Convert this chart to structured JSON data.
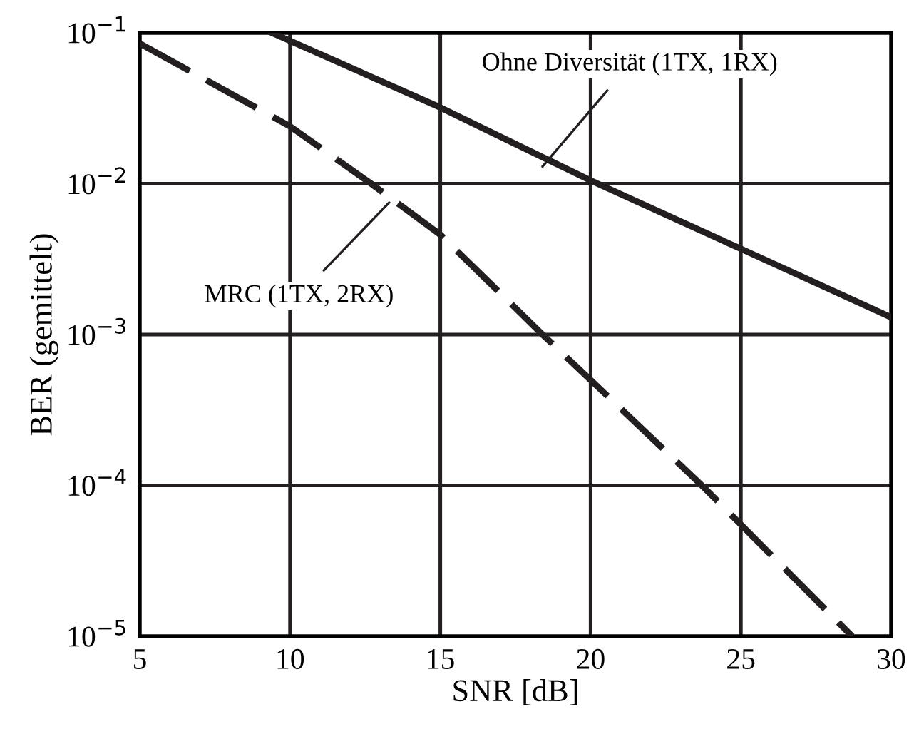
{
  "chart_data": {
    "type": "line",
    "xlabel": "SNR [dB]",
    "ylabel": "BER (gemittelt)",
    "log": "y",
    "xlim": [
      5,
      30
    ],
    "xticks": [
      5,
      10,
      15,
      20,
      25,
      30
    ],
    "ylim": [
      1e-05,
      0.1
    ],
    "yticks": [
      {
        "value": 1e-05,
        "label": "10$^{−5}$"
      },
      {
        "value": 0.0001,
        "label": "10$^{−4}$"
      },
      {
        "value": 0.001,
        "label": "10$^{−3}$"
      },
      {
        "value": 0.01,
        "label": "10$^{−2}$"
      },
      {
        "value": 0.1,
        "label": "10$^{−1}$"
      }
    ],
    "grid": true,
    "series": [
      {
        "color": "#231f20",
        "line_style": "solid",
        "x": [
          9.4,
          15,
          20,
          25,
          30
        ],
        "values": [
          0.1,
          0.032,
          0.0105,
          0.0037,
          0.0013
        ]
      },
      {
        "color": "#231f20",
        "line_style": "dashed",
        "x": [
          5,
          10,
          12.7,
          15,
          18.4,
          20,
          23.7,
          25,
          28.7
        ],
        "values": [
          0.085,
          0.024,
          0.01,
          0.0046,
          0.001,
          0.0005,
          0.0001,
          5.5e-05,
          1e-05
        ]
      }
    ],
    "annotations": [
      {
        "text": "Ohne Diversität (1TX, 1RX)",
        "x": 18.4,
        "y": 0.013
      },
      {
        "text": "MRC (1TX, 2RX)",
        "x": 13.3,
        "y": 0.0075
      }
    ]
  }
}
